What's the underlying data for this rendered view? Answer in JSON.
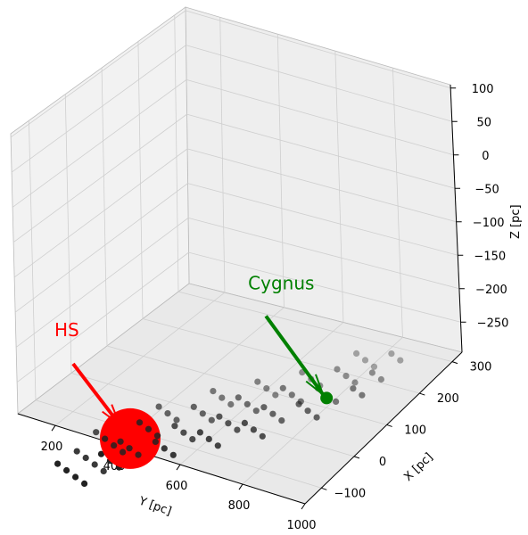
{
  "chart_data": {
    "type": "scatter",
    "projection": "3d",
    "xlabel": "X [pc]",
    "ylabel": "Y [pc]",
    "zlabel": "Z [pc]",
    "x_ticks": [
      "−100",
      "0",
      "100",
      "200",
      "300"
    ],
    "y_ticks": [
      "200",
      "400",
      "600",
      "800",
      "1000"
    ],
    "z_ticks": [
      "100",
      "50",
      "0",
      "−50",
      "−100",
      "−150",
      "−200",
      "−250"
    ],
    "xlim": [
      -150,
      330
    ],
    "ylim": [
      80,
      1000
    ],
    "zlim": [
      -295,
      105
    ],
    "grid": true,
    "point_color": "#222222",
    "points": [
      {
        "y": 175,
        "x": 0,
        "z": -180
      },
      {
        "y": 205,
        "x": 0,
        "z": -185
      },
      {
        "y": 235,
        "x": 0,
        "z": -190
      },
      {
        "y": 265,
        "x": 0,
        "z": -195
      },
      {
        "y": 175,
        "x": 40,
        "z": -180
      },
      {
        "y": 205,
        "x": 40,
        "z": -185
      },
      {
        "y": 235,
        "x": 40,
        "z": -190
      },
      {
        "y": 265,
        "x": 40,
        "z": -195
      },
      {
        "y": 175,
        "x": 80,
        "z": -170
      },
      {
        "y": 205,
        "x": 80,
        "z": -175
      },
      {
        "y": 235,
        "x": 80,
        "z": -180
      },
      {
        "y": 265,
        "x": 80,
        "z": -185
      },
      {
        "y": 325,
        "x": 0,
        "z": -140
      },
      {
        "y": 355,
        "x": 0,
        "z": -145
      },
      {
        "y": 385,
        "x": 0,
        "z": -150
      },
      {
        "y": 325,
        "x": 40,
        "z": -140
      },
      {
        "y": 355,
        "x": 40,
        "z": -145
      },
      {
        "y": 385,
        "x": 40,
        "z": -150
      },
      {
        "y": 325,
        "x": 80,
        "z": -130
      },
      {
        "y": 355,
        "x": 80,
        "z": -135
      },
      {
        "y": 385,
        "x": 80,
        "z": -140
      },
      {
        "y": 325,
        "x": 120,
        "z": -125
      },
      {
        "y": 355,
        "x": 120,
        "z": -130
      },
      {
        "y": 385,
        "x": 120,
        "z": -135
      },
      {
        "y": 445,
        "x": 40,
        "z": -120
      },
      {
        "y": 475,
        "x": 40,
        "z": -125
      },
      {
        "y": 505,
        "x": 40,
        "z": -130
      },
      {
        "y": 445,
        "x": 80,
        "z": -115
      },
      {
        "y": 475,
        "x": 80,
        "z": -120
      },
      {
        "y": 505,
        "x": 80,
        "z": -125
      },
      {
        "y": 445,
        "x": 120,
        "z": -105
      },
      {
        "y": 475,
        "x": 120,
        "z": -110
      },
      {
        "y": 505,
        "x": 120,
        "z": -115
      },
      {
        "y": 445,
        "x": 160,
        "z": -100
      },
      {
        "y": 475,
        "x": 160,
        "z": -105
      },
      {
        "y": 505,
        "x": 160,
        "z": -110
      },
      {
        "y": 565,
        "x": 60,
        "z": -95
      },
      {
        "y": 595,
        "x": 60,
        "z": -100
      },
      {
        "y": 625,
        "x": 60,
        "z": -105
      },
      {
        "y": 565,
        "x": 100,
        "z": -90
      },
      {
        "y": 595,
        "x": 100,
        "z": -95
      },
      {
        "y": 625,
        "x": 100,
        "z": -100
      },
      {
        "y": 565,
        "x": 140,
        "z": -80
      },
      {
        "y": 595,
        "x": 140,
        "z": -85
      },
      {
        "y": 625,
        "x": 140,
        "z": -90
      },
      {
        "y": 565,
        "x": 180,
        "z": -75
      },
      {
        "y": 595,
        "x": 180,
        "z": -80
      },
      {
        "y": 625,
        "x": 180,
        "z": -85
      },
      {
        "y": 685,
        "x": 80,
        "z": -70
      },
      {
        "y": 715,
        "x": 80,
        "z": -75
      },
      {
        "y": 745,
        "x": 80,
        "z": -80
      },
      {
        "y": 685,
        "x": 120,
        "z": -65
      },
      {
        "y": 715,
        "x": 120,
        "z": -70
      },
      {
        "y": 745,
        "x": 120,
        "z": -75
      },
      {
        "y": 685,
        "x": 160,
        "z": -55
      },
      {
        "y": 715,
        "x": 160,
        "z": -60
      },
      {
        "y": 745,
        "x": 160,
        "z": -65
      },
      {
        "y": 685,
        "x": 200,
        "z": -50
      },
      {
        "y": 715,
        "x": 200,
        "z": -55
      },
      {
        "y": 745,
        "x": 200,
        "z": -60
      },
      {
        "y": 805,
        "x": 120,
        "z": -40
      },
      {
        "y": 835,
        "x": 120,
        "z": -45
      },
      {
        "y": 865,
        "x": 120,
        "z": -50
      },
      {
        "y": 805,
        "x": 160,
        "z": -35
      },
      {
        "y": 835,
        "x": 160,
        "z": -40
      },
      {
        "y": 865,
        "x": 160,
        "z": -45
      },
      {
        "y": 805,
        "x": 200,
        "z": -25
      },
      {
        "y": 835,
        "x": 200,
        "z": -30
      },
      {
        "y": 865,
        "x": 200,
        "z": -35
      },
      {
        "y": 805,
        "x": 240,
        "z": -20
      },
      {
        "y": 835,
        "x": 240,
        "z": -25
      },
      {
        "y": 865,
        "x": 240,
        "z": -30
      },
      {
        "y": 925,
        "x": 160,
        "z": -15
      },
      {
        "y": 955,
        "x": 160,
        "z": -20
      },
      {
        "y": 925,
        "x": 200,
        "z": -10
      },
      {
        "y": 955,
        "x": 200,
        "z": -15
      },
      {
        "y": 925,
        "x": 240,
        "z": 0
      },
      {
        "y": 955,
        "x": 240,
        "z": -5
      }
    ],
    "annotations": [
      {
        "text": "HS",
        "color": "#ff0000",
        "target": {
          "y": 325,
          "x": 60,
          "z": -145
        },
        "marker_size": 34,
        "label_offset": [
          -85,
          -115
        ],
        "arrow_start_offset": [
          -64,
          -84
        ],
        "arrow_end_offset": [
          -12,
          -16
        ]
      },
      {
        "text": "Cygnus",
        "color": "#008000",
        "target": {
          "y": 800,
          "x": 180,
          "z": -60
        },
        "marker_size": 7,
        "label_offset": [
          -88,
          -122
        ],
        "arrow_start_offset": [
          -68,
          -92
        ],
        "arrow_end_offset": [
          -4,
          -4
        ]
      }
    ]
  }
}
